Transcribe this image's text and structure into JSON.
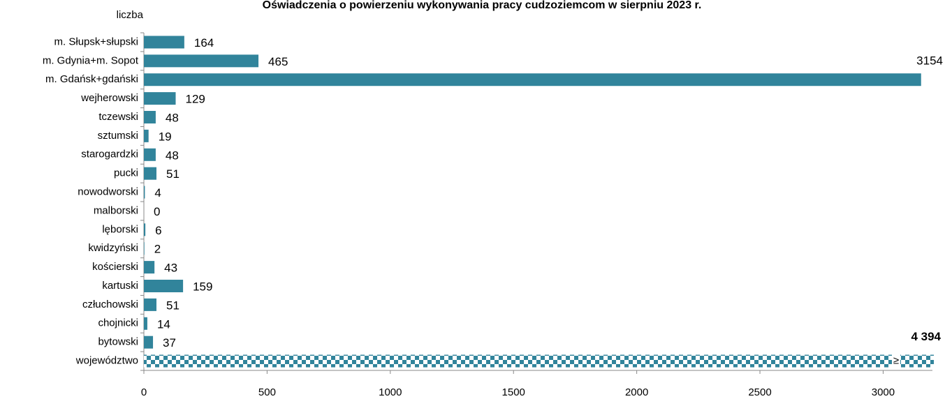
{
  "chart_data": {
    "type": "bar",
    "orientation": "horizontal",
    "title": "Oświadczenia o powierzeniu wykonywania pracy cudzoziemcom w sierpniu 2023 r.",
    "y_label": "liczba",
    "categories": [
      "m. Słupsk+słupski",
      "m. Gdynia+m. Sopot",
      "m. Gdańsk+gdański",
      "wejherowski",
      "tczewski",
      "sztumski",
      "starogardzki",
      "pucki",
      "nowodworski",
      "malborski",
      "lęborski",
      "kwidzyński",
      "kościerski",
      "kartuski",
      "człuchowski",
      "chojnicki",
      "bytowski",
      "województwo"
    ],
    "values": [
      164,
      465,
      3154,
      129,
      48,
      19,
      48,
      51,
      4,
      0,
      6,
      2,
      43,
      159,
      51,
      14,
      37,
      4394
    ],
    "value_labels": [
      "164",
      "465",
      "3154",
      "129",
      "48",
      "19",
      "48",
      "51",
      "4",
      "0",
      "6",
      "2",
      "43",
      "159",
      "51",
      "14",
      "37",
      "4 394"
    ],
    "color": "#31849b",
    "xlim": [
      0,
      3200
    ],
    "xticks": [
      0,
      500,
      1000,
      1500,
      2000,
      2500,
      3000
    ]
  }
}
